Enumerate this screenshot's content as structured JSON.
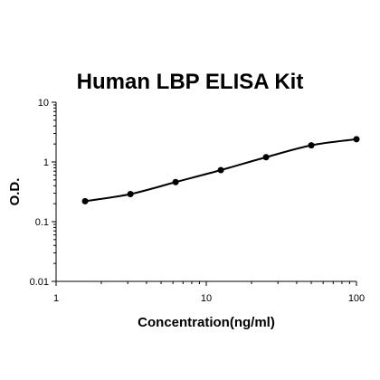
{
  "chart_data": {
    "type": "scatter",
    "title": "Human LBP ELISA Kit",
    "xlabel": "Concentration(ng/ml)",
    "ylabel": "O.D.",
    "x_scale": "log",
    "y_scale": "log",
    "xlim": [
      1,
      100
    ],
    "ylim": [
      0.01,
      10
    ],
    "x_ticks": [
      "1",
      "10",
      "100"
    ],
    "y_ticks": [
      "0.01",
      "0.1",
      "1",
      "10"
    ],
    "grid": false,
    "legend": "none",
    "series": [
      {
        "x": [
          1.56,
          3.125,
          6.25,
          12.5,
          25,
          50,
          100
        ],
        "y": [
          0.22,
          0.29,
          0.46,
          0.73,
          1.2,
          1.9,
          2.4
        ],
        "fit": "smooth-curve"
      }
    ],
    "colors": {
      "line": "#000000",
      "marker": "#000000"
    }
  }
}
